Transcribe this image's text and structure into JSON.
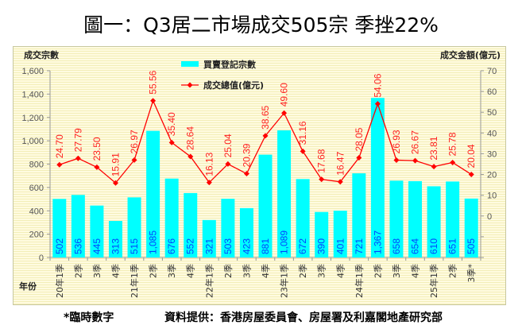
{
  "title": "圖一：Q3居二市場成交505宗 季挫22%",
  "footnote": "*臨時數字",
  "source": "資料提供：香港房屋委員會、房屋署及利嘉閣地產研究部",
  "chart_data": {
    "type": "bar",
    "categories": [
      "20年1季",
      "2季",
      "3季",
      "4季",
      "21年1季",
      "2季",
      "3季",
      "4季",
      "22年1季",
      "2季",
      "3季",
      "4季",
      "23年1季",
      "2季",
      "3季",
      "4季",
      "24年1季",
      "2季",
      "3季",
      "4季",
      "25年1季",
      "2季",
      "3季*"
    ],
    "xlabel": "年份",
    "ylabel_left": "成交宗數",
    "ylabel_right": "成交金額(億元)",
    "ylim_left": [
      0,
      1600
    ],
    "yticks_left": [
      0,
      200,
      400,
      600,
      800,
      1000,
      1200,
      1400,
      1600
    ],
    "ylim_right": [
      -20,
      70
    ],
    "yticks_right": [
      0,
      10,
      20,
      30,
      40,
      50,
      60,
      70
    ],
    "legend_position": "top-center",
    "series": [
      {
        "name": "買賣登記宗數",
        "type": "bar",
        "axis": "left",
        "color": "#00ffff",
        "values": [
          502,
          536,
          445,
          313,
          515,
          1085,
          676,
          552,
          321,
          503,
          423,
          881,
          1089,
          672,
          390,
          401,
          721,
          1367,
          658,
          654,
          610,
          651,
          505
        ],
        "labels": [
          "502",
          "536",
          "445",
          "313",
          "515",
          "1,085",
          "676",
          "552",
          "321",
          "503",
          "423",
          "881",
          "1,089",
          "672",
          "390",
          "401",
          "721",
          "1,367",
          "658",
          "654",
          "610",
          "651",
          "505"
        ]
      },
      {
        "name": "成交總值(億元)",
        "type": "line",
        "axis": "right",
        "color": "#ff0000",
        "values": [
          24.7,
          27.79,
          23.5,
          15.91,
          26.97,
          55.56,
          35.4,
          28.64,
          16.13,
          25.04,
          20.39,
          38.65,
          49.6,
          31.16,
          17.68,
          16.47,
          28.05,
          54.06,
          26.93,
          26.67,
          23.81,
          25.78,
          20.04
        ],
        "labels": [
          "24.70",
          "27.79",
          "23.50",
          "15.91",
          "26.97",
          "55.56",
          "35.40",
          "28.64",
          "16.13",
          "25.04",
          "20.39",
          "38.65",
          "49.60",
          "31.16",
          "17.68",
          "16.47",
          "28.05",
          "54.06",
          "26.93",
          "26.67",
          "23.81",
          "25.78",
          "20.04"
        ]
      }
    ]
  }
}
